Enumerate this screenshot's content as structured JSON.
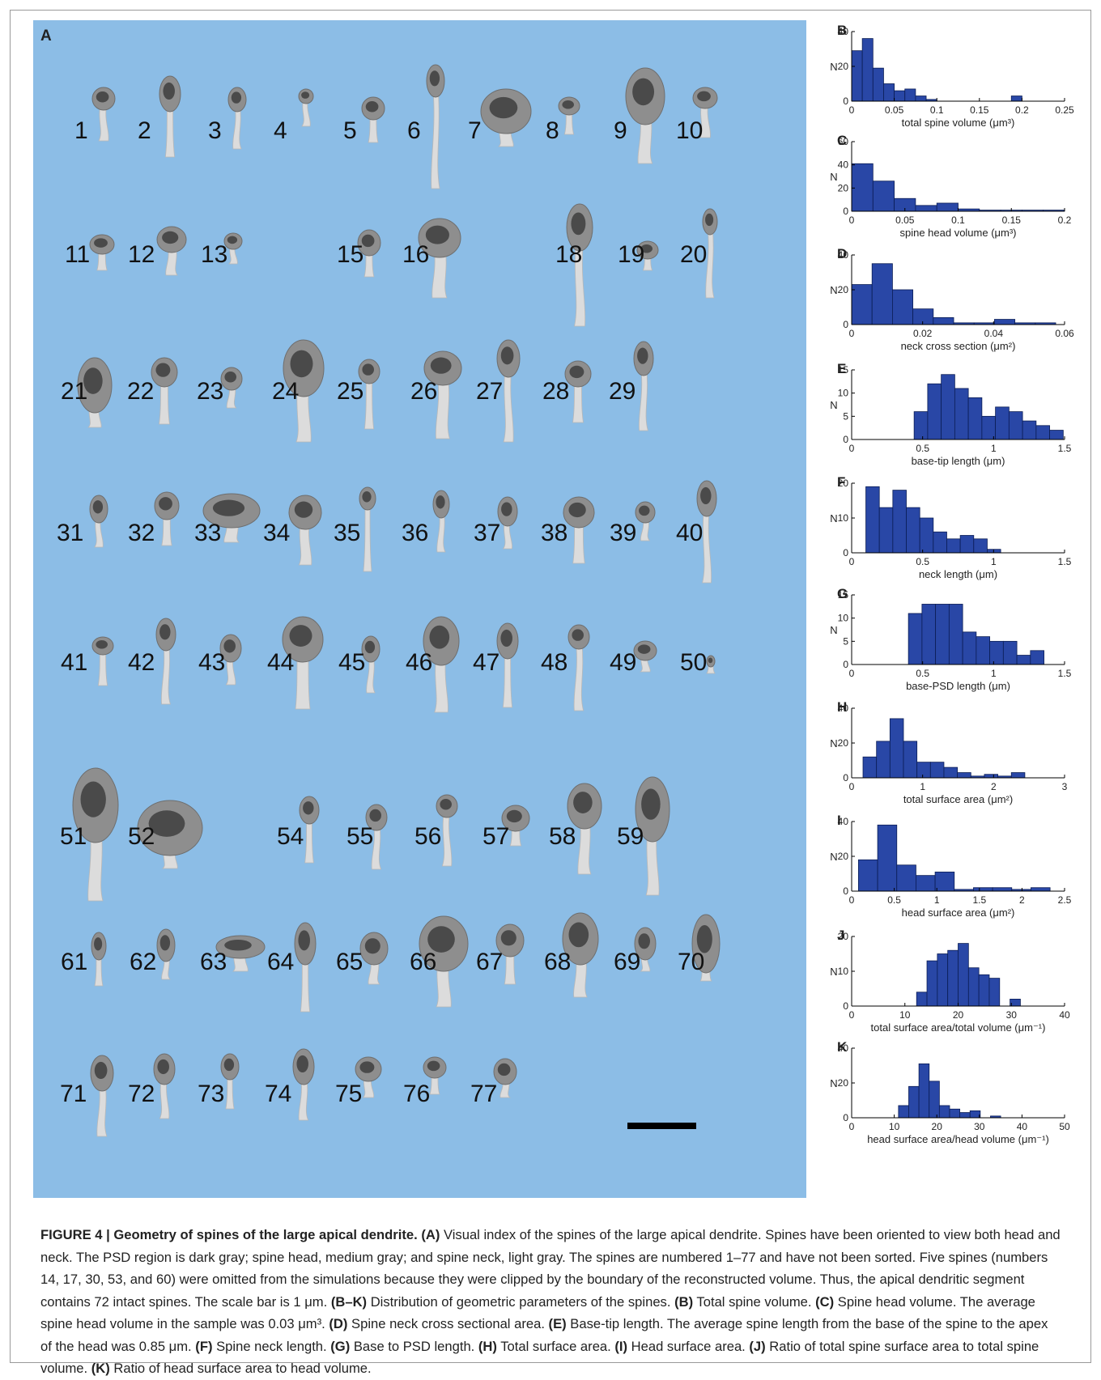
{
  "panel_a": {
    "label": "A",
    "spines": [
      "1",
      "2",
      "3",
      "4",
      "5",
      "6",
      "7",
      "8",
      "9",
      "10",
      "11",
      "12",
      "13",
      "15",
      "16",
      "18",
      "19",
      "20",
      "21",
      "22",
      "23",
      "24",
      "25",
      "26",
      "27",
      "28",
      "29",
      "31",
      "32",
      "33",
      "34",
      "35",
      "36",
      "37",
      "38",
      "39",
      "40",
      "41",
      "42",
      "43",
      "44",
      "45",
      "46",
      "47",
      "48",
      "49",
      "50",
      "51",
      "52",
      "54",
      "55",
      "56",
      "57",
      "58",
      "59",
      "61",
      "62",
      "63",
      "64",
      "65",
      "66",
      "67",
      "68",
      "69",
      "70",
      "71",
      "72",
      "73",
      "74",
      "75",
      "76",
      "77"
    ],
    "colors": {
      "background": "#8cbde6",
      "psd": "#4a4a4a",
      "head": "#8e8e8e",
      "neck": "#dcdcdc"
    }
  },
  "chart_data": [
    {
      "panel": "B",
      "type": "bar",
      "xlabel": "total spine volume (μm³)",
      "ylabel": "N",
      "xlim": [
        0,
        0.25
      ],
      "ylim": [
        0,
        40
      ],
      "xticks": [
        "0",
        "0.05",
        "0.1",
        "0.15",
        "0.2",
        "0.25"
      ],
      "yticks": [
        "0",
        "20",
        "40"
      ],
      "bin_width": 0.0125,
      "bin_start": 0,
      "values": [
        29,
        36,
        19,
        10,
        6,
        7,
        3,
        1,
        0,
        0,
        0,
        0,
        0,
        0,
        0,
        3,
        0,
        0,
        0,
        0
      ]
    },
    {
      "panel": "C",
      "type": "bar",
      "xlabel": "spine head volume (μm³)",
      "ylabel": "N",
      "xlim": [
        0,
        0.2
      ],
      "ylim": [
        0,
        60
      ],
      "xticks": [
        "0",
        "0.05",
        "0.1",
        "0.15",
        "0.2"
      ],
      "yticks": [
        "0",
        "20",
        "40",
        "60"
      ],
      "bin_width": 0.02,
      "bin_start": 0,
      "values": [
        41,
        26,
        11,
        5,
        7,
        2,
        1,
        1,
        1,
        1
      ]
    },
    {
      "panel": "D",
      "type": "bar",
      "xlabel": "neck cross section (μm²)",
      "ylabel": "N",
      "xlim": [
        0,
        0.06
      ],
      "ylim": [
        0,
        40
      ],
      "xticks": [
        "0",
        "0.02",
        "0.04",
        "0.06"
      ],
      "yticks": [
        "0",
        "20",
        "40"
      ],
      "bin_width": 0.00575,
      "bin_start": 0,
      "values": [
        23,
        35,
        20,
        9,
        4,
        1,
        1,
        3,
        1,
        1
      ]
    },
    {
      "panel": "E",
      "type": "bar",
      "xlabel": "base-tip length (μm)",
      "ylabel": "N",
      "xlim": [
        0,
        1.5
      ],
      "ylim": [
        0,
        15
      ],
      "xticks": [
        "0",
        "0.5",
        "1",
        "1.5"
      ],
      "yticks": [
        "0",
        "5",
        "10",
        "15"
      ],
      "bin_width": 0.0955,
      "bin_start": 0.44,
      "values": [
        6,
        12,
        14,
        11,
        9,
        5,
        7,
        6,
        4,
        3,
        2
      ]
    },
    {
      "panel": "F",
      "type": "bar",
      "xlabel": "neck length (μm)",
      "ylabel": "N",
      "xlim": [
        0,
        1.5
      ],
      "ylim": [
        0,
        20
      ],
      "xticks": [
        "0",
        "0.5",
        "1",
        "1.5"
      ],
      "yticks": [
        "0",
        "10",
        "20"
      ],
      "bin_width": 0.095,
      "bin_start": 0.1,
      "values": [
        19,
        13,
        18,
        13,
        10,
        6,
        4,
        5,
        4,
        1
      ]
    },
    {
      "panel": "G",
      "type": "bar",
      "xlabel": "base-PSD length (μm)",
      "ylabel": "N",
      "xlim": [
        0,
        1.5
      ],
      "ylim": [
        0,
        15
      ],
      "xticks": [
        "0",
        "0.5",
        "1",
        "1.5"
      ],
      "yticks": [
        "0",
        "5",
        "10",
        "15"
      ],
      "bin_width": 0.0955,
      "bin_start": 0.4,
      "values": [
        11,
        13,
        13,
        13,
        7,
        6,
        5,
        5,
        2,
        3
      ]
    },
    {
      "panel": "H",
      "type": "bar",
      "xlabel": "total surface area (μm²)",
      "ylabel": "N",
      "xlim": [
        0,
        3
      ],
      "ylim": [
        0,
        40
      ],
      "xticks": [
        "0",
        "1",
        "2",
        "3"
      ],
      "yticks": [
        "0",
        "20",
        "40"
      ],
      "bin_width": 0.19,
      "bin_start": 0.16,
      "values": [
        12,
        21,
        34,
        21,
        9,
        9,
        6,
        3,
        1,
        2,
        1,
        3
      ]
    },
    {
      "panel": "I",
      "type": "bar",
      "xlabel": "head surface area (μm²)",
      "ylabel": "N",
      "xlim": [
        0,
        2.5
      ],
      "ylim": [
        0,
        40
      ],
      "xticks": [
        "0",
        "0.5",
        "1",
        "1.5",
        "2",
        "2.5"
      ],
      "yticks": [
        "0",
        "20",
        "40"
      ],
      "bin_width": 0.225,
      "bin_start": 0.08,
      "values": [
        18,
        38,
        15,
        9,
        11,
        1,
        2,
        2,
        1,
        2
      ]
    },
    {
      "panel": "J",
      "type": "bar",
      "xlabel": "total surface area/total volume (μm⁻¹)",
      "ylabel": "N",
      "xlim": [
        0,
        40
      ],
      "ylim": [
        0,
        20
      ],
      "xticks": [
        "0",
        "10",
        "20",
        "30",
        "40"
      ],
      "yticks": [
        "0",
        "10",
        "20"
      ],
      "bin_width": 1.95,
      "bin_start": 12.2,
      "values": [
        4,
        13,
        15,
        16,
        18,
        11,
        9,
        8,
        0,
        2
      ]
    },
    {
      "panel": "K",
      "type": "bar",
      "xlabel": "head surface area/head volume (μm⁻¹)",
      "ylabel": "N",
      "xlim": [
        0,
        50
      ],
      "ylim": [
        0,
        40
      ],
      "xticks": [
        "0",
        "10",
        "20",
        "30",
        "40",
        "50"
      ],
      "yticks": [
        "0",
        "20",
        "40"
      ],
      "bin_width": 2.4,
      "bin_start": 11,
      "values": [
        7,
        18,
        31,
        21,
        7,
        5,
        3,
        4,
        0,
        1
      ]
    }
  ],
  "caption": {
    "figure": "FIGURE 4 | Geometry of spines of the large apical dendrite.",
    "a_label": "(A)",
    "a_text": " Visual index of the spines of the large apical dendrite. Spines have been oriented to view both head and neck. The PSD region is dark gray; spine head, medium gray; and spine neck, light gray. The spines are numbered 1–77 and have not been sorted. Five spines (numbers 14, 17, 30, 53, and 60) were omitted from the simulations because they were clipped by the boundary of the reconstructed volume. Thus, the apical dendritic segment contains 72 intact spines. The scale bar is 1 μm. ",
    "bk_label": "(B–K)",
    "bk_text": " Distribution of geometric parameters of the spines. ",
    "b_label": "(B)",
    "b_text": " Total spine volume. ",
    "c_label": "(C)",
    "c_text": " Spine head volume. The average spine head volume in the sample was 0.03 μm³. ",
    "d_label": "(D)",
    "d_text": " Spine neck cross sectional area. ",
    "e_label": "(E)",
    "e_text": " Base-tip length. The average spine length from the base of the spine to the apex of the head was 0.85 μm. ",
    "f_label": "(F)",
    "f_text": " Spine neck length. ",
    "g_label": "(G)",
    "g_text": " Base to PSD length. ",
    "h_label": "(H)",
    "h_text": " Total surface area. ",
    "i_label": "(I)",
    "i_text": " Head surface area. ",
    "j_label": "(J)",
    "j_text": " Ratio of total spine surface area to total spine volume. ",
    "k_label": "(K)",
    "k_text": " Ratio of head surface area to head volume."
  }
}
